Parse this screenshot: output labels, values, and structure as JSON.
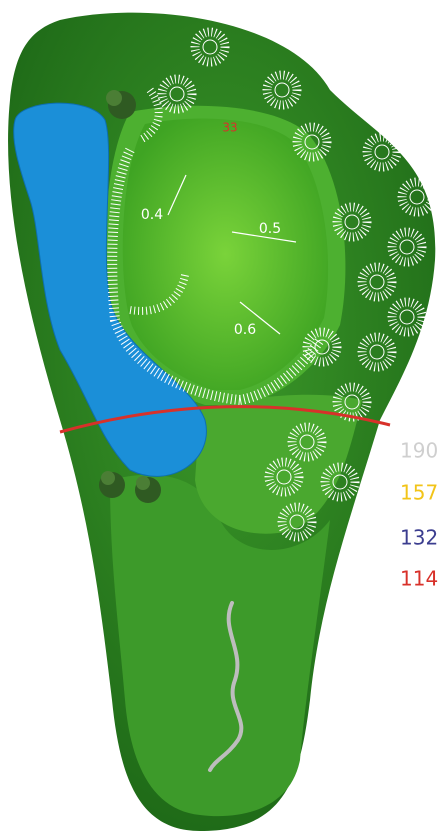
{
  "green": {
    "pin_label": "33",
    "slopes": [
      0.4,
      0.5,
      0.6
    ]
  },
  "distances": [
    {
      "value": 190,
      "color": "#cfcfcf"
    },
    {
      "value": 157,
      "color": "#f2c418"
    },
    {
      "value": 132,
      "color": "#3b3d8f"
    },
    {
      "value": 114,
      "color": "#d8312a"
    }
  ]
}
